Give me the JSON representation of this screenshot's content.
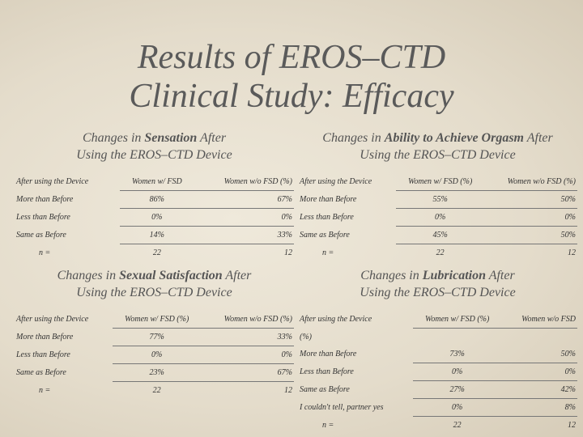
{
  "header": {
    "title_line1": "Results of EROS–CTD",
    "title_line2": "Clinical Study: Efficacy"
  },
  "panels": [
    {
      "heading": {
        "before": "Changes in",
        "bold": "Sensation",
        "after": "After",
        "line2": "Using the EROS–CTD Device"
      },
      "columns": [
        "After using the Device",
        "Women w/ FSD",
        "Women w/o FSD (%)"
      ],
      "rows": [
        [
          "More than Before",
          "86%",
          "67%"
        ],
        [
          "Less than Before",
          "0%",
          "0%"
        ],
        [
          "Same as Before",
          "14%",
          "33%"
        ]
      ],
      "n": [
        "n =",
        "22",
        "12"
      ]
    },
    {
      "heading": {
        "before": "Changes in",
        "bold": "Ability to Achieve Orgasm",
        "after": "After",
        "line2": "Using the EROS–CTD Device"
      },
      "columns": [
        "After using the Device",
        "Women w/ FSD (%)",
        "Women w/o FSD (%)"
      ],
      "rows": [
        [
          "More than Before",
          "55%",
          "50%"
        ],
        [
          "Less than Before",
          "0%",
          "0%"
        ],
        [
          "Same as Before",
          "45%",
          "50%"
        ]
      ],
      "n": [
        "n =",
        "22",
        "12"
      ]
    },
    {
      "heading": {
        "before": "Changes in",
        "bold": "Sexual Satisfaction",
        "after": "After",
        "line2": "Using the EROS–CTD Device"
      },
      "columns": [
        "After using the Device",
        "Women w/ FSD (%)",
        "Women w/o FSD (%)"
      ],
      "rows": [
        [
          "More than Before",
          "77%",
          "33%"
        ],
        [
          "Less than Before",
          "0%",
          "0%"
        ],
        [
          "Same as Before",
          "23%",
          "67%"
        ]
      ],
      "n": [
        "n =",
        "22",
        "12"
      ]
    },
    {
      "heading": {
        "before": "Changes in",
        "bold": "Lubrication",
        "after": "After",
        "line2": "Using the EROS–CTD Device"
      },
      "columns": [
        "After using the Device",
        "Women w/ FSD (%)",
        "Women w/o FSD"
      ],
      "header_note": "(%)",
      "rows": [
        [
          "More than Before",
          "73%",
          "50%"
        ],
        [
          "Less than Before",
          "0%",
          "0%"
        ],
        [
          "Same as Before",
          "27%",
          "42%"
        ],
        [
          "I couldn't tell, partner yes",
          "0%",
          "8%"
        ]
      ],
      "n": [
        "n =",
        "22",
        "12"
      ]
    }
  ]
}
